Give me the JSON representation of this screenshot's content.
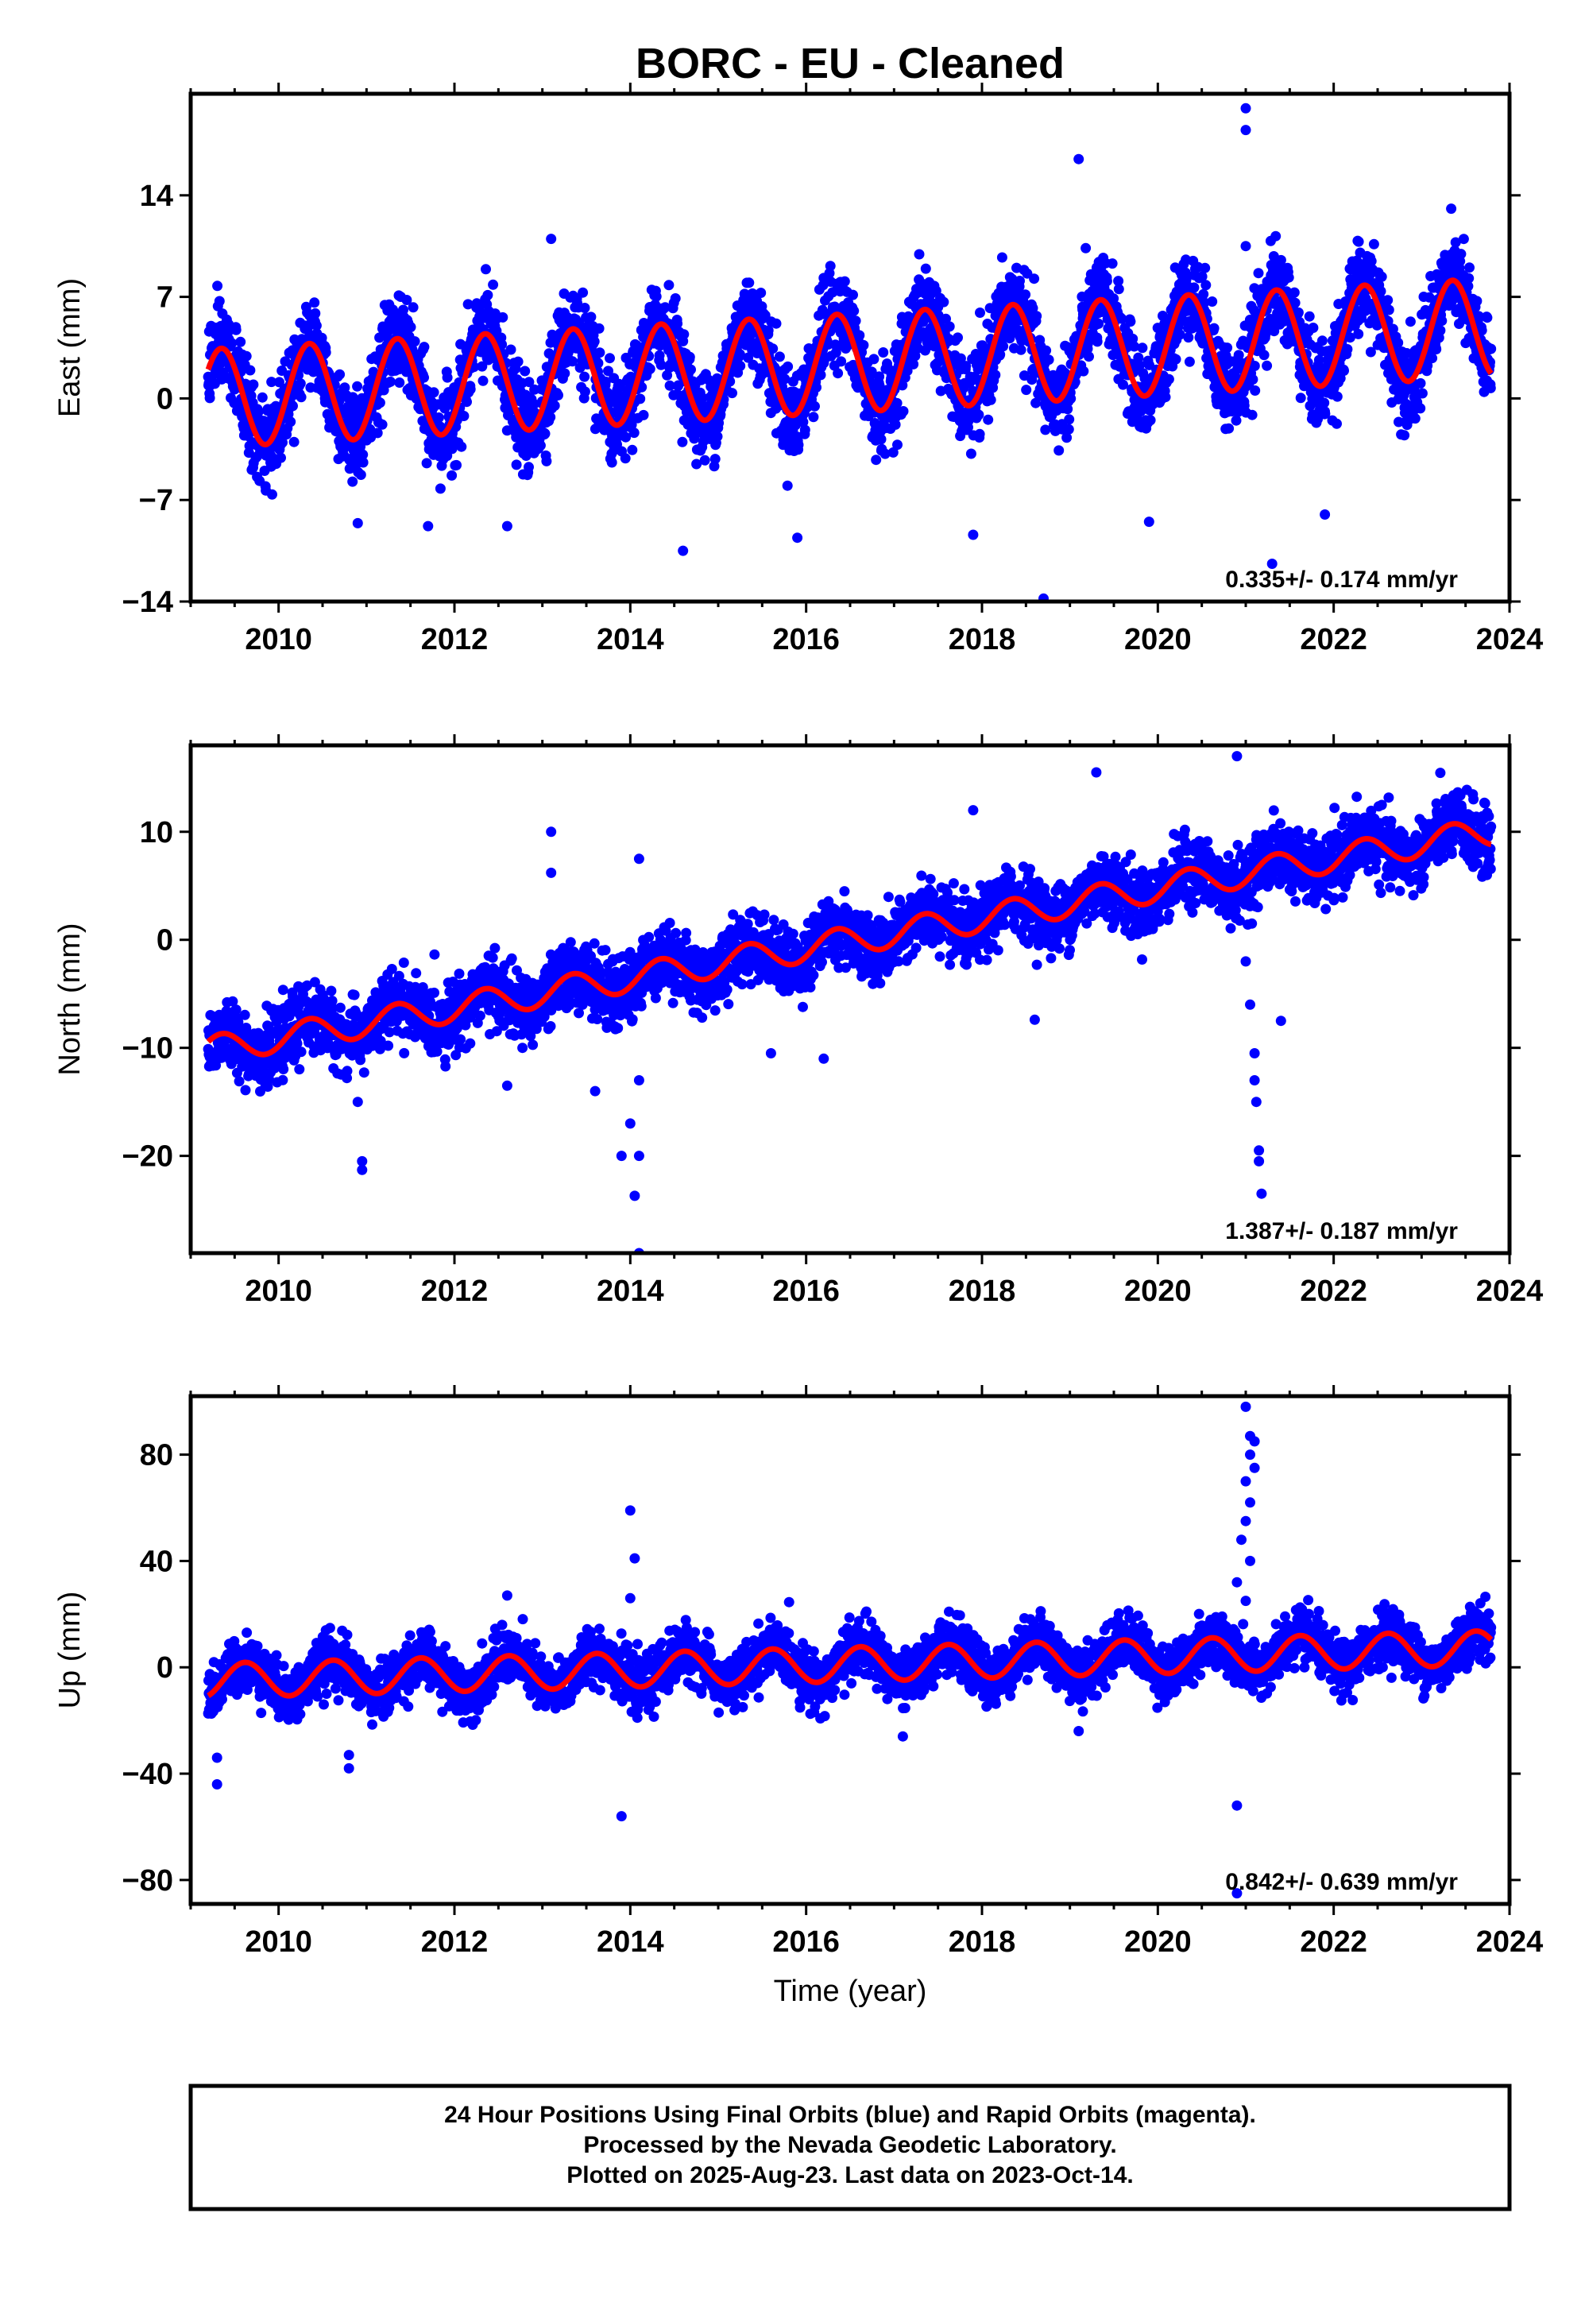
{
  "chart_data": {
    "type": "scatter",
    "title": "BORC  - EU - Cleaned",
    "xlabel": "Time (year)",
    "x_ticks": [
      2010,
      2012,
      2014,
      2016,
      2018,
      2020,
      2022,
      2024
    ],
    "colors": {
      "points": "#0000ff",
      "fit": "#ff0000",
      "axis": "#000000"
    },
    "panels": [
      {
        "ylabel": "East (mm)",
        "ylim": [
          -14,
          21
        ],
        "y_ticks": [
          -14,
          -7,
          0,
          7,
          14
        ],
        "rate_text": "0.335+/- 0.174 mm/yr",
        "trend": {
          "t0": 2009.2,
          "v0": 0.0,
          "rate": 0.335
        },
        "seasonal": {
          "amplitude": 3.4,
          "peak_phase": 0.35
        },
        "noise_sd": 1.5,
        "outliers": [
          {
            "x": 2021.0,
            "y": 20
          },
          {
            "x": 2021.0,
            "y": 18.5
          },
          {
            "x": 2019.1,
            "y": 16.5
          },
          {
            "x": 2013.1,
            "y": 11
          },
          {
            "x": 2015.3,
            "y": 7.2
          },
          {
            "x": 2017.4,
            "y": 8
          },
          {
            "x": 2016.2,
            "y": 8.3
          },
          {
            "x": 2021.0,
            "y": 10.5
          },
          {
            "x": 2014.6,
            "y": -10.5
          },
          {
            "x": 2015.9,
            "y": -9.6
          },
          {
            "x": 2018.7,
            "y": -13.8
          },
          {
            "x": 2017.9,
            "y": -9.4
          },
          {
            "x": 2021.9,
            "y": -8
          },
          {
            "x": 2021.3,
            "y": -11.4
          },
          {
            "x": 2019.9,
            "y": -8.5
          },
          {
            "x": 2012.6,
            "y": -8.8
          },
          {
            "x": 2011.7,
            "y": -8.8
          },
          {
            "x": 2010.9,
            "y": -8.6
          }
        ]
      },
      {
        "ylabel": "North (mm)",
        "ylim": [
          -29,
          18
        ],
        "y_ticks": [
          -20,
          -10,
          0,
          10
        ],
        "rate_text": "1.387+/- 0.187 mm/yr",
        "trend": {
          "t0": 2009.2,
          "v0": -10.2,
          "rate": 1.387
        },
        "seasonal": {
          "amplitude": 1.3,
          "peak_phase": 0.35
        },
        "noise_sd": 1.5,
        "outliers": [
          {
            "x": 2020.9,
            "y": 17
          },
          {
            "x": 2019.3,
            "y": 15.5
          },
          {
            "x": 2013.1,
            "y": 10
          },
          {
            "x": 2013.1,
            "y": 6.2
          },
          {
            "x": 2014.1,
            "y": 7.5
          },
          {
            "x": 2017.9,
            "y": 12
          },
          {
            "x": 2010.9,
            "y": -15
          },
          {
            "x": 2010.95,
            "y": -20.5
          },
          {
            "x": 2010.95,
            "y": -21.3
          },
          {
            "x": 2013.9,
            "y": -20
          },
          {
            "x": 2014.0,
            "y": -17
          },
          {
            "x": 2014.1,
            "y": -20
          },
          {
            "x": 2014.05,
            "y": -23.7
          },
          {
            "x": 2014.1,
            "y": -29
          },
          {
            "x": 2014.1,
            "y": -13
          },
          {
            "x": 2015.6,
            "y": -10.5
          },
          {
            "x": 2016.2,
            "y": -11
          },
          {
            "x": 2013.6,
            "y": -14
          },
          {
            "x": 2012.6,
            "y": -13.5
          },
          {
            "x": 2018.6,
            "y": -7.4
          },
          {
            "x": 2021.4,
            "y": -7.5
          },
          {
            "x": 2021.0,
            "y": -2
          },
          {
            "x": 2021.05,
            "y": -6
          },
          {
            "x": 2021.1,
            "y": -10.5
          },
          {
            "x": 2021.1,
            "y": -13
          },
          {
            "x": 2021.12,
            "y": -15
          },
          {
            "x": 2021.15,
            "y": -19.5
          },
          {
            "x": 2021.15,
            "y": -20.5
          },
          {
            "x": 2021.18,
            "y": -23.5
          }
        ]
      },
      {
        "ylabel": "Up (mm)",
        "ylim": [
          -89,
          102
        ],
        "y_ticks": [
          -80,
          -40,
          0,
          40,
          80
        ],
        "rate_text": "0.842+/- 0.639 mm/yr",
        "trend": {
          "t0": 2009.2,
          "v0": -5.0,
          "rate": 0.842
        },
        "seasonal": {
          "amplitude": 6.5,
          "peak_phase": 0.62
        },
        "noise_sd": 5.0,
        "outliers": [
          {
            "x": 2021.0,
            "y": 98
          },
          {
            "x": 2021.05,
            "y": 87
          },
          {
            "x": 2021.1,
            "y": 85
          },
          {
            "x": 2021.05,
            "y": 80
          },
          {
            "x": 2021.1,
            "y": 75
          },
          {
            "x": 2021.0,
            "y": 70
          },
          {
            "x": 2021.05,
            "y": 62
          },
          {
            "x": 2021.0,
            "y": 55
          },
          {
            "x": 2020.95,
            "y": 48
          },
          {
            "x": 2021.05,
            "y": 40
          },
          {
            "x": 2020.9,
            "y": 32
          },
          {
            "x": 2021.0,
            "y": 25
          },
          {
            "x": 2014.0,
            "y": 59
          },
          {
            "x": 2014.05,
            "y": 41
          },
          {
            "x": 2014.0,
            "y": 26
          },
          {
            "x": 2009.3,
            "y": -44
          },
          {
            "x": 2009.3,
            "y": -34
          },
          {
            "x": 2010.8,
            "y": -38
          },
          {
            "x": 2010.8,
            "y": -33
          },
          {
            "x": 2013.9,
            "y": -56
          },
          {
            "x": 2020.9,
            "y": -52
          },
          {
            "x": 2020.9,
            "y": -85
          },
          {
            "x": 2019.1,
            "y": -24
          },
          {
            "x": 2017.1,
            "y": -26
          },
          {
            "x": 2012.6,
            "y": 27
          }
        ]
      }
    ],
    "date_range": [
      2009.2,
      2023.79
    ]
  },
  "footer": {
    "line1": "24 Hour Positions Using Final Orbits (blue) and Rapid Orbits (magenta).",
    "line2": "Processed by the Nevada Geodetic Laboratory.",
    "line3": "Plotted on 2025-Aug-23. Last data on 2023-Oct-14."
  }
}
